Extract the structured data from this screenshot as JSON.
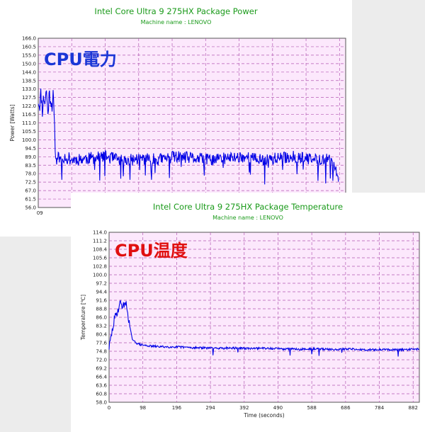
{
  "overlays": {
    "power": {
      "text": "CPU電力",
      "color": "#1a36d6"
    },
    "temperature": {
      "text": "CPU温度",
      "color": "#e01010"
    }
  },
  "chart_data": [
    {
      "type": "line",
      "title": "Intel Core Ultra 9 275HX Package Power",
      "subtitle": "Machine name : LENOVO",
      "ylabel": "Power [Watts]",
      "xlabel": "",
      "ylim": [
        56.0,
        166.0
      ],
      "xlim": [
        0,
        900
      ],
      "y_ticks": [
        "166.0",
        "160.5",
        "155.0",
        "150.0",
        "144.0",
        "138.5",
        "133.0",
        "127.5",
        "122.0",
        "116.5",
        "111.0",
        "105.5",
        "100.0",
        "94.5",
        "89.0",
        "83.5",
        "78.0",
        "72.5",
        "67.0",
        "61.5",
        "56.0"
      ],
      "x_ticks": [
        "0",
        "9"
      ],
      "grid": true,
      "series": [
        {
          "color": "#0000e6",
          "x": [
            0,
            4,
            8,
            12,
            16,
            20,
            24,
            28,
            32,
            36,
            40,
            44,
            48,
            52,
            55,
            60,
            80,
            100,
            150,
            200,
            250,
            300,
            350,
            400,
            450,
            500,
            550,
            600,
            650,
            700,
            750,
            800,
            850,
            880
          ],
          "y": [
            126,
            122,
            131,
            119,
            128,
            124,
            133,
            116,
            130,
            127,
            122,
            129,
            105,
            84,
            91,
            88,
            89,
            87,
            88,
            89,
            86,
            88,
            87,
            89,
            88,
            87,
            88,
            89,
            87,
            88,
            89,
            87,
            88,
            76
          ]
        }
      ]
    },
    {
      "type": "line",
      "title": "Intel Core Ultra 9 275HX Package Temperature",
      "subtitle": "Machine name : LENOVO",
      "ylabel": "Temperature [℃]",
      "xlabel": "Time (seconds)",
      "ylim": [
        58.0,
        114.0
      ],
      "xlim": [
        0,
        900
      ],
      "y_ticks": [
        "114.0",
        "111.2",
        "108.4",
        "105.6",
        "102.8",
        "100.0",
        "97.2",
        "94.4",
        "91.6",
        "88.8",
        "86.0",
        "83.2",
        "80.4",
        "77.6",
        "74.8",
        "72.0",
        "69.2",
        "66.4",
        "63.6",
        "60.8",
        "58.0"
      ],
      "x_ticks": [
        "0",
        "98",
        "196",
        "294",
        "392",
        "490",
        "588",
        "686",
        "784",
        "882"
      ],
      "grid": true,
      "series": [
        {
          "color": "#0000e6",
          "x": [
            0,
            5,
            10,
            15,
            20,
            25,
            30,
            35,
            40,
            45,
            50,
            55,
            60,
            65,
            70,
            75,
            80,
            90,
            100,
            120,
            150,
            200,
            250,
            300,
            350,
            400,
            450,
            500,
            550,
            600,
            650,
            700,
            750,
            800,
            850,
            882,
            900
          ],
          "y": [
            76,
            79,
            82,
            85,
            87,
            88,
            90,
            91,
            89,
            91,
            90,
            87,
            83,
            80,
            78,
            78,
            77.5,
            77,
            76.8,
            76.5,
            76.3,
            76.2,
            76,
            75.8,
            75.9,
            75.7,
            75.8,
            75.6,
            75.5,
            75.6,
            75.4,
            75.5,
            75.3,
            75.4,
            75.3,
            75.5,
            75.6
          ]
        }
      ]
    }
  ]
}
